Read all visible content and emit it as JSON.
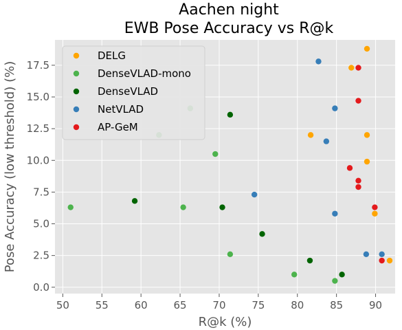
{
  "chart_data": {
    "type": "scatter",
    "title": "Aachen night\nEWB Pose Accuracy vs R@k",
    "xlabel": "R@k (%)",
    "ylabel": "Pose Accuracy (low threshold) (%)",
    "xlim": [
      49,
      92.5
    ],
    "ylim": [
      -0.5,
      19.5
    ],
    "xticks": [
      50,
      55,
      60,
      65,
      70,
      75,
      80,
      85,
      90
    ],
    "yticks": [
      0.0,
      2.5,
      5.0,
      7.5,
      10.0,
      12.5,
      15.0,
      17.5
    ],
    "xtick_labels": [
      "50",
      "55",
      "60",
      "65",
      "70",
      "75",
      "80",
      "85",
      "90"
    ],
    "ytick_labels": [
      "0.0",
      "2.5",
      "5.0",
      "7.5",
      "10.0",
      "12.5",
      "15.0",
      "17.5"
    ],
    "grid": true,
    "legend_position": "top-left",
    "background_color": "#e5e5e5",
    "series": [
      {
        "name": "DELG",
        "color": "#ffa500",
        "points": [
          [
            88.9,
            18.8
          ],
          [
            86.9,
            17.3
          ],
          [
            88.9,
            12.0
          ],
          [
            81.7,
            12.0
          ],
          [
            88.9,
            9.9
          ],
          [
            89.9,
            5.8
          ],
          [
            91.8,
            2.1
          ]
        ]
      },
      {
        "name": "DenseVLAD-mono",
        "color": "#4db34d",
        "points": [
          [
            66.3,
            14.1
          ],
          [
            62.3,
            12.0
          ],
          [
            69.5,
            10.5
          ],
          [
            51.0,
            6.3
          ],
          [
            65.4,
            6.3
          ],
          [
            71.4,
            2.6
          ],
          [
            79.6,
            1.0
          ],
          [
            84.8,
            0.5
          ]
        ]
      },
      {
        "name": "DenseVLAD",
        "color": "#006400",
        "points": [
          [
            71.4,
            13.6
          ],
          [
            59.2,
            6.8
          ],
          [
            70.4,
            6.3
          ],
          [
            75.5,
            4.2
          ],
          [
            81.6,
            2.1
          ],
          [
            85.7,
            1.0
          ]
        ]
      },
      {
        "name": "NetVLAD",
        "color": "#377eb8",
        "points": [
          [
            82.7,
            17.8
          ],
          [
            84.8,
            14.1
          ],
          [
            83.7,
            11.5
          ],
          [
            74.5,
            7.3
          ],
          [
            84.8,
            5.8
          ],
          [
            88.8,
            2.6
          ],
          [
            90.8,
            2.6
          ]
        ]
      },
      {
        "name": "AP-GeM",
        "color": "#e41a1c",
        "points": [
          [
            87.8,
            17.3
          ],
          [
            87.8,
            14.7
          ],
          [
            86.7,
            9.4
          ],
          [
            87.8,
            8.4
          ],
          [
            87.8,
            7.9
          ],
          [
            89.9,
            6.3
          ],
          [
            90.8,
            2.1
          ]
        ]
      }
    ]
  }
}
